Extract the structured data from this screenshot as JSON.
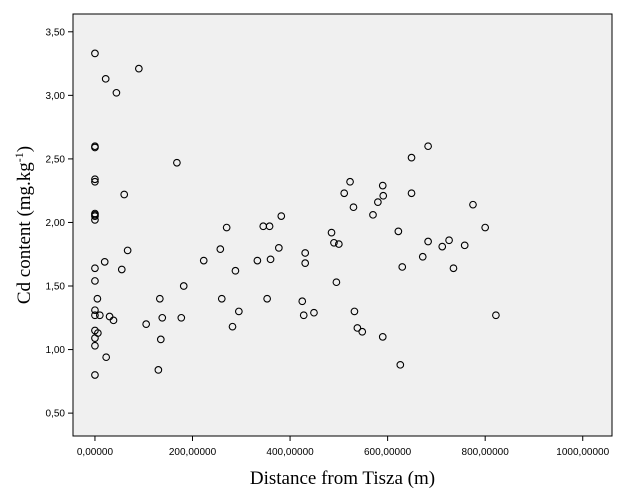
{
  "chart_data": {
    "type": "scatter",
    "title": "",
    "xlabel": "Distance from Tisza (m)",
    "ylabel_main": "Cd content (mg.kg",
    "ylabel_sup": "-1",
    "ylabel_close": ")",
    "xlim": [
      -45,
      1060
    ],
    "ylim": [
      0.32,
      3.64
    ],
    "xticks": [
      0,
      200,
      400,
      600,
      800,
      1000
    ],
    "xtick_labels": [
      "0,00000",
      "200,00000",
      "400,00000",
      "600,00000",
      "800,00000",
      "1000,00000"
    ],
    "yticks": [
      0.5,
      1.0,
      1.5,
      2.0,
      2.5,
      3.0,
      3.5
    ],
    "ytick_labels": [
      "0,50",
      "1,00",
      "1,50",
      "2,00",
      "2,50",
      "3,00",
      "3,50"
    ],
    "grid": false,
    "colors": {
      "plot_bg": "#f0f0f0",
      "marker": "#000000",
      "axis": "#000000"
    },
    "series": [
      {
        "points": [
          [
            0,
            3.33
          ],
          [
            0,
            2.6
          ],
          [
            0,
            2.59
          ],
          [
            0,
            2.34
          ],
          [
            0,
            2.32
          ],
          [
            0,
            2.07
          ],
          [
            0,
            2.06
          ],
          [
            0,
            2.05
          ],
          [
            0,
            2.02
          ],
          [
            0,
            1.64
          ],
          [
            0,
            1.54
          ],
          [
            0,
            1.31
          ],
          [
            0,
            1.27
          ],
          [
            0,
            1.15
          ],
          [
            0,
            1.09
          ],
          [
            0,
            1.03
          ],
          [
            0,
            0.8
          ],
          [
            5,
            1.4
          ],
          [
            6,
            1.13
          ],
          [
            10,
            1.27
          ],
          [
            22,
            3.13
          ],
          [
            20,
            1.69
          ],
          [
            23,
            0.94
          ],
          [
            30,
            1.26
          ],
          [
            38,
            1.23
          ],
          [
            44,
            3.02
          ],
          [
            55,
            1.63
          ],
          [
            60,
            2.22
          ],
          [
            67,
            1.78
          ],
          [
            90,
            3.21
          ],
          [
            105,
            1.2
          ],
          [
            130,
            0.84
          ],
          [
            133,
            1.4
          ],
          [
            135,
            1.08
          ],
          [
            138,
            1.25
          ],
          [
            168,
            2.47
          ],
          [
            177,
            1.25
          ],
          [
            182,
            1.5
          ],
          [
            223,
            1.7
          ],
          [
            257,
            1.79
          ],
          [
            260,
            1.4
          ],
          [
            270,
            1.96
          ],
          [
            282,
            1.18
          ],
          [
            288,
            1.62
          ],
          [
            295,
            1.3
          ],
          [
            333,
            1.7
          ],
          [
            345,
            1.97
          ],
          [
            353,
            1.4
          ],
          [
            358,
            1.97
          ],
          [
            360,
            1.71
          ],
          [
            377,
            1.8
          ],
          [
            382,
            2.05
          ],
          [
            425,
            1.38
          ],
          [
            428,
            1.27
          ],
          [
            431,
            1.76
          ],
          [
            431,
            1.68
          ],
          [
            449,
            1.29
          ],
          [
            485,
            1.92
          ],
          [
            490,
            1.84
          ],
          [
            495,
            1.53
          ],
          [
            500,
            1.83
          ],
          [
            511,
            2.23
          ],
          [
            523,
            2.32
          ],
          [
            530,
            2.12
          ],
          [
            532,
            1.3
          ],
          [
            538,
            1.17
          ],
          [
            548,
            1.14
          ],
          [
            570,
            2.06
          ],
          [
            580,
            2.16
          ],
          [
            590,
            2.29
          ],
          [
            591,
            2.21
          ],
          [
            590,
            1.1
          ],
          [
            622,
            1.93
          ],
          [
            626,
            0.88
          ],
          [
            630,
            1.65
          ],
          [
            649,
            2.51
          ],
          [
            649,
            2.23
          ],
          [
            672,
            1.73
          ],
          [
            683,
            2.6
          ],
          [
            683,
            1.85
          ],
          [
            712,
            1.81
          ],
          [
            726,
            1.86
          ],
          [
            735,
            1.64
          ],
          [
            758,
            1.82
          ],
          [
            775,
            2.14
          ],
          [
            800,
            1.96
          ],
          [
            822,
            1.27
          ]
        ]
      }
    ]
  }
}
